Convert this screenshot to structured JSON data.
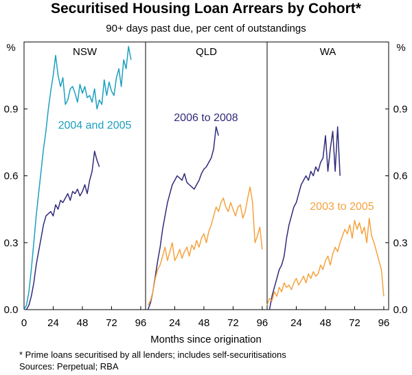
{
  "title": "Securitised Housing Loan Arrears by Cohort*",
  "subtitle": "90+ days past due, per cent of outstandings",
  "x_axis_label": "Months since origination",
  "y_unit_label": "%",
  "footnote": "*   Prime loans securitised by all lenders; includes self-securitisations",
  "sources": "Sources: Perpetual; RBA",
  "colors": {
    "cohort_2004_2005": "#1a9fbf",
    "cohort_2006_2008": "#2e2a7a",
    "cohort_2003_2005": "#f5a23c"
  },
  "chart_data": [
    {
      "type": "line",
      "panel": "NSW",
      "xlim": [
        0,
        100
      ],
      "ylim": [
        0,
        1.2
      ],
      "xticks": [
        0,
        24,
        48,
        72,
        96
      ],
      "yticks": [
        0.0,
        0.3,
        0.6,
        0.9
      ],
      "series": [
        {
          "name": "2004 and 2005",
          "color": "#1a9fbf",
          "x": [
            0,
            2,
            4,
            6,
            8,
            10,
            12,
            14,
            16,
            18,
            20,
            22,
            24,
            26,
            28,
            30,
            32,
            34,
            36,
            38,
            40,
            42,
            44,
            46,
            48,
            50,
            52,
            54,
            56,
            58,
            60,
            62,
            64,
            66,
            68,
            70,
            72,
            74,
            76,
            78,
            80,
            82,
            84,
            86,
            88
          ],
          "y": [
            0.0,
            0.02,
            0.08,
            0.18,
            0.3,
            0.42,
            0.52,
            0.62,
            0.72,
            0.8,
            0.9,
            0.98,
            1.05,
            1.14,
            1.05,
            1.0,
            1.04,
            0.92,
            0.94,
            0.99,
            1.0,
            0.97,
            0.93,
            1.01,
            0.97,
            1.0,
            0.95,
            0.96,
            0.93,
            0.99,
            0.9,
            0.94,
            0.92,
            1.03,
            0.96,
            1.02,
            0.98,
            0.96,
            1.04,
            1.08,
            1.0,
            1.12,
            1.08,
            1.18,
            1.12
          ]
        },
        {
          "name": "2006 to 2008",
          "color": "#2e2a7a",
          "x": [
            2,
            4,
            6,
            8,
            10,
            12,
            14,
            16,
            18,
            20,
            22,
            24,
            26,
            28,
            30,
            32,
            34,
            36,
            38,
            40,
            42,
            44,
            46,
            48,
            50,
            52,
            54,
            56,
            58,
            60,
            62
          ],
          "y": [
            0.0,
            0.02,
            0.06,
            0.12,
            0.2,
            0.26,
            0.32,
            0.38,
            0.42,
            0.43,
            0.44,
            0.42,
            0.47,
            0.45,
            0.49,
            0.48,
            0.5,
            0.52,
            0.49,
            0.53,
            0.52,
            0.54,
            0.51,
            0.53,
            0.56,
            0.52,
            0.58,
            0.62,
            0.71,
            0.67,
            0.64
          ]
        }
      ]
    },
    {
      "type": "line",
      "panel": "QLD",
      "xlim": [
        0,
        100
      ],
      "ylim": [
        0,
        1.2
      ],
      "xticks": [
        24,
        48,
        72,
        96
      ],
      "yticks": [
        0.0,
        0.3,
        0.6,
        0.9
      ],
      "series": [
        {
          "name": "2006 to 2008",
          "color": "#2e2a7a",
          "x": [
            2,
            4,
            6,
            8,
            10,
            12,
            14,
            16,
            18,
            20,
            22,
            24,
            26,
            28,
            30,
            32,
            34,
            36,
            38,
            40,
            42,
            44,
            46,
            48,
            50,
            52,
            54,
            56,
            58,
            60
          ],
          "y": [
            0.0,
            0.03,
            0.08,
            0.15,
            0.22,
            0.28,
            0.36,
            0.42,
            0.48,
            0.52,
            0.56,
            0.58,
            0.6,
            0.59,
            0.58,
            0.61,
            0.57,
            0.56,
            0.55,
            0.54,
            0.56,
            0.58,
            0.61,
            0.63,
            0.64,
            0.66,
            0.68,
            0.72,
            0.82,
            0.78
          ]
        },
        {
          "name": "",
          "color": "#f5a23c",
          "x": [
            2,
            4,
            6,
            8,
            10,
            12,
            14,
            16,
            18,
            20,
            22,
            24,
            26,
            28,
            30,
            32,
            34,
            36,
            38,
            40,
            42,
            44,
            46,
            48,
            50,
            52,
            54,
            56,
            58,
            60,
            62,
            64,
            66,
            68,
            70,
            72,
            74,
            76,
            78,
            80,
            82,
            84,
            86,
            88,
            90,
            92,
            94,
            96
          ],
          "y": [
            0.02,
            0.04,
            0.08,
            0.14,
            0.18,
            0.2,
            0.24,
            0.28,
            0.22,
            0.26,
            0.3,
            0.22,
            0.24,
            0.27,
            0.23,
            0.26,
            0.28,
            0.24,
            0.29,
            0.27,
            0.31,
            0.28,
            0.32,
            0.34,
            0.3,
            0.35,
            0.38,
            0.42,
            0.46,
            0.44,
            0.48,
            0.5,
            0.46,
            0.44,
            0.48,
            0.45,
            0.42,
            0.46,
            0.47,
            0.41,
            0.44,
            0.5,
            0.55,
            0.48,
            0.3,
            0.33,
            0.37,
            0.27
          ]
        }
      ]
    },
    {
      "type": "line",
      "panel": "WA",
      "xlim": [
        0,
        100
      ],
      "ylim": [
        0,
        1.2
      ],
      "xticks": [
        24,
        48,
        72,
        96
      ],
      "yticks": [
        0.0,
        0.3,
        0.6,
        0.9
      ],
      "series": [
        {
          "name": "2006 to 2008",
          "color": "#2e2a7a",
          "x": [
            2,
            4,
            6,
            8,
            10,
            12,
            14,
            16,
            18,
            20,
            22,
            24,
            26,
            28,
            30,
            32,
            34,
            36,
            38,
            40,
            42,
            44,
            46,
            48,
            50,
            52,
            54,
            56,
            58,
            60
          ],
          "y": [
            0.0,
            0.06,
            0.1,
            0.14,
            0.18,
            0.2,
            0.24,
            0.32,
            0.38,
            0.42,
            0.46,
            0.48,
            0.52,
            0.56,
            0.58,
            0.6,
            0.58,
            0.62,
            0.6,
            0.64,
            0.62,
            0.66,
            0.68,
            0.78,
            0.62,
            0.72,
            0.8,
            0.62,
            0.82,
            0.6
          ]
        },
        {
          "name": "2003 to 2005",
          "color": "#f5a23c",
          "x": [
            0,
            2,
            4,
            6,
            8,
            10,
            12,
            14,
            16,
            18,
            20,
            22,
            24,
            26,
            28,
            30,
            32,
            34,
            36,
            38,
            40,
            42,
            44,
            46,
            48,
            50,
            52,
            54,
            56,
            58,
            60,
            62,
            64,
            66,
            68,
            70,
            72,
            74,
            76,
            78,
            80,
            82,
            84,
            86,
            88,
            90,
            92,
            94,
            96
          ],
          "y": [
            0.02,
            0.05,
            0.04,
            0.08,
            0.06,
            0.1,
            0.08,
            0.12,
            0.1,
            0.11,
            0.09,
            0.12,
            0.14,
            0.11,
            0.13,
            0.15,
            0.12,
            0.16,
            0.14,
            0.17,
            0.15,
            0.16,
            0.2,
            0.18,
            0.22,
            0.24,
            0.2,
            0.25,
            0.28,
            0.26,
            0.3,
            0.33,
            0.36,
            0.34,
            0.38,
            0.32,
            0.4,
            0.36,
            0.39,
            0.34,
            0.37,
            0.3,
            0.41,
            0.33,
            0.3,
            0.26,
            0.22,
            0.18,
            0.06
          ]
        }
      ]
    }
  ],
  "panel_labels": [
    {
      "text": "2004 and 2005",
      "color": "#1a9fbf"
    },
    {
      "text": "2006 to 2008",
      "color": "#2e2a7a"
    },
    {
      "text": "2003 to 2005",
      "color": "#f5a23c"
    }
  ]
}
